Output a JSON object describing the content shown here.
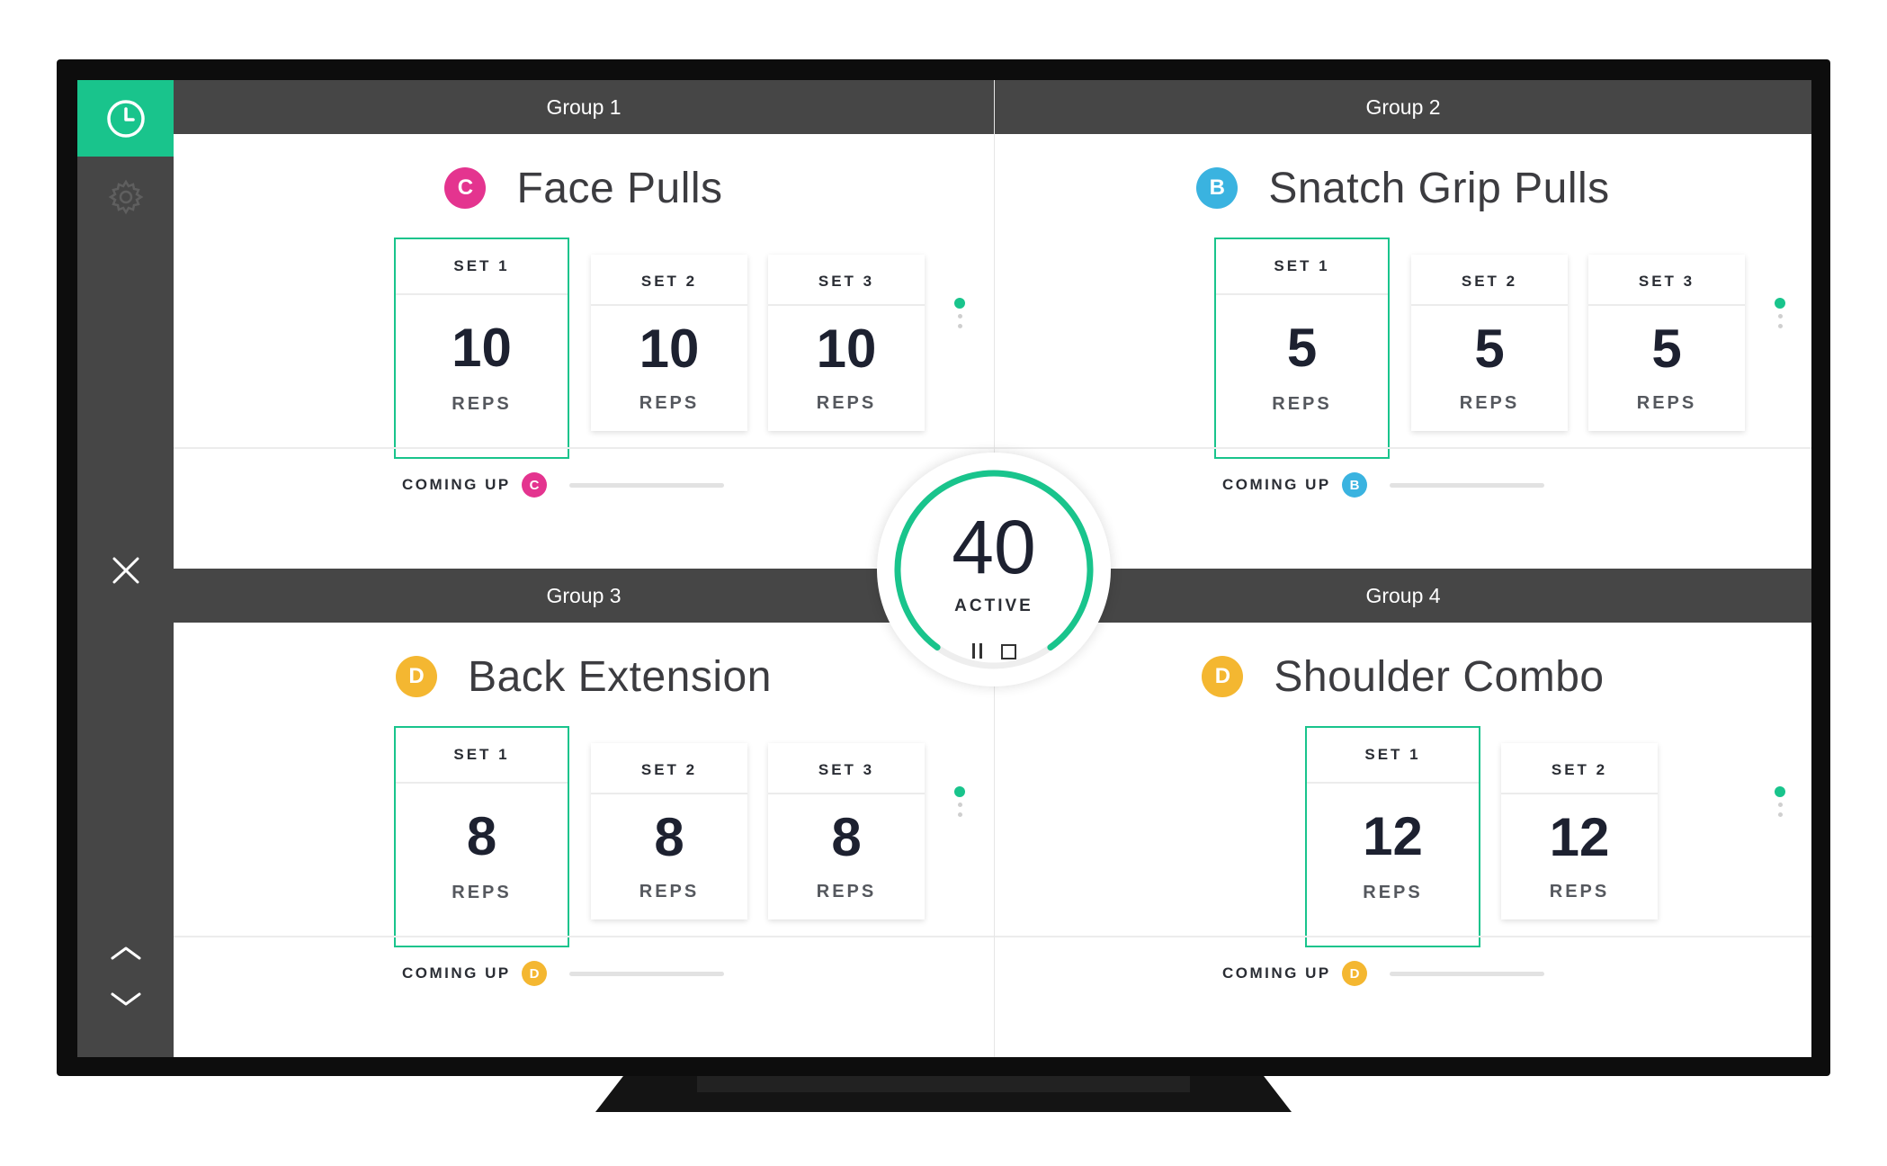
{
  "colors": {
    "accent": "#19c48c",
    "header_bg": "#464646",
    "badge_C": "#e4348f",
    "badge_B": "#3ab3e0",
    "badge_D": "#f4b731"
  },
  "sidebar": {
    "clock_icon": "clock-icon",
    "settings_icon": "gear-icon",
    "close_icon": "close-icon",
    "up_icon": "chevron-up-icon",
    "down_icon": "chevron-down-icon"
  },
  "groups": [
    {
      "header": "Group 1",
      "badge": "C",
      "exercise": "Face Pulls",
      "sets": [
        {
          "label": "SET 1",
          "reps": "10",
          "unit": "REPS"
        },
        {
          "label": "SET 2",
          "reps": "10",
          "unit": "REPS"
        },
        {
          "label": "SET 3",
          "reps": "10",
          "unit": "REPS"
        }
      ],
      "coming_up_label": "COMING UP",
      "coming_up_badge": "C"
    },
    {
      "header": "Group 2",
      "badge": "B",
      "exercise": "Snatch Grip Pulls",
      "sets": [
        {
          "label": "SET 1",
          "reps": "5",
          "unit": "REPS"
        },
        {
          "label": "SET 2",
          "reps": "5",
          "unit": "REPS"
        },
        {
          "label": "SET 3",
          "reps": "5",
          "unit": "REPS"
        }
      ],
      "coming_up_label": "COMING UP",
      "coming_up_badge": "B"
    },
    {
      "header": "Group 3",
      "badge": "D",
      "exercise": "Back Extension",
      "sets": [
        {
          "label": "SET 1",
          "reps": "8",
          "unit": "REPS"
        },
        {
          "label": "SET 2",
          "reps": "8",
          "unit": "REPS"
        },
        {
          "label": "SET 3",
          "reps": "8",
          "unit": "REPS"
        }
      ],
      "coming_up_label": "COMING UP",
      "coming_up_badge": "D"
    },
    {
      "header": "Group 4",
      "badge": "D",
      "exercise": "Shoulder Combo",
      "sets": [
        {
          "label": "SET 1",
          "reps": "12",
          "unit": "REPS"
        },
        {
          "label": "SET 2",
          "reps": "12",
          "unit": "REPS"
        }
      ],
      "coming_up_label": "COMING UP",
      "coming_up_badge": "D"
    }
  ],
  "timer": {
    "value": "40",
    "status": "ACTIVE",
    "progress": 0.8,
    "pause_icon": "pause-icon",
    "stop_icon": "stop-icon"
  }
}
